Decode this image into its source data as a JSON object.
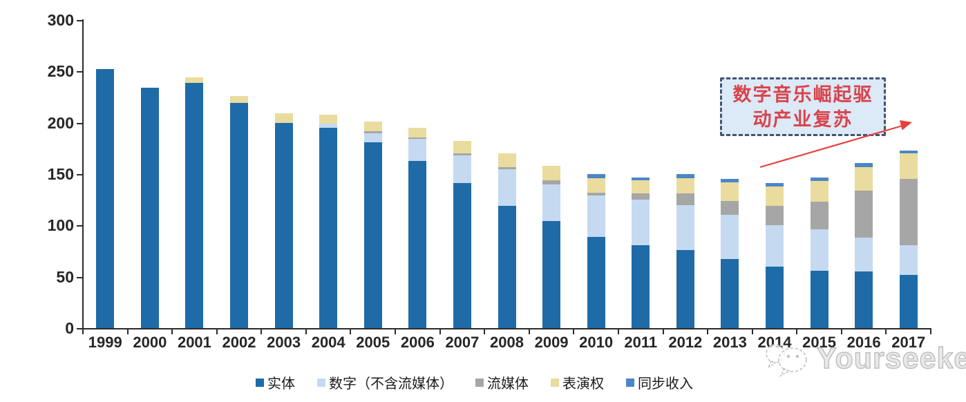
{
  "chart_data": {
    "type": "bar",
    "stacked": true,
    "categories": [
      "1999",
      "2000",
      "2001",
      "2002",
      "2003",
      "2004",
      "2005",
      "2006",
      "2007",
      "2008",
      "2009",
      "2010",
      "2011",
      "2012",
      "2013",
      "2014",
      "2015",
      "2016",
      "2017"
    ],
    "series": [
      {
        "name": "实体",
        "color": "#1e6ba8",
        "values": [
          252,
          234,
          239,
          219,
          200,
          195,
          181,
          163,
          141,
          119,
          104,
          89,
          81,
          76,
          67,
          60,
          56,
          55,
          52
        ]
      },
      {
        "name": "数字（不含流媒体）",
        "color": "#c5daf1",
        "values": [
          0,
          0,
          0,
          0,
          0,
          4,
          9,
          21,
          27,
          36,
          36,
          40,
          44,
          44,
          43,
          40,
          40,
          33,
          29
        ]
      },
      {
        "name": "流媒体",
        "color": "#a6a6a6",
        "values": [
          0,
          0,
          0,
          0,
          0,
          0,
          2,
          2,
          2,
          2,
          4,
          3,
          6,
          11,
          14,
          19,
          27,
          46,
          64
        ]
      },
      {
        "name": "表演权",
        "color": "#eadc9e",
        "values": [
          0,
          0,
          5,
          7,
          9,
          9,
          9,
          9,
          12,
          13,
          14,
          14,
          13,
          15,
          18,
          19,
          20,
          23,
          25
        ]
      },
      {
        "name": "同步收入",
        "color": "#4a86c8",
        "values": [
          0,
          0,
          0,
          0,
          0,
          0,
          0,
          0,
          0,
          0,
          0,
          4,
          3,
          4,
          3,
          3,
          4,
          4,
          3
        ]
      }
    ],
    "ylim": [
      0,
      300
    ],
    "yticks": [
      0,
      50,
      100,
      150,
      200,
      250,
      300
    ],
    "xlabel": "",
    "ylabel": "",
    "title": "",
    "grid": false,
    "legend_position": "bottom"
  },
  "annotation": {
    "line1": "数字音乐崛起驱",
    "line2": "动产业复苏",
    "border_color": "#3f5570",
    "fill_color": "#dce9f7",
    "text_color": "#d9434a",
    "arrow_color": "#e8403d"
  },
  "watermark": {
    "text": "Yourseeker",
    "logo": "chat-bubbles-icon",
    "color": "#bdbdbd"
  }
}
